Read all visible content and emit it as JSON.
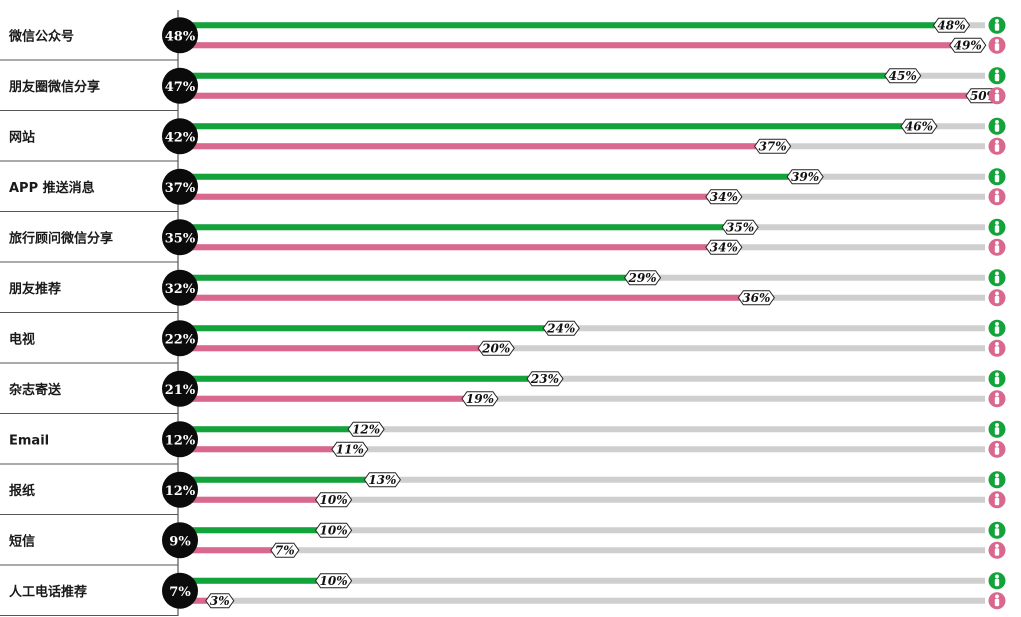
{
  "colors": {
    "male": "#12a43a",
    "female": "#d9678e",
    "track": "#cfcfcf",
    "circle": "#0b0b0b"
  },
  "icons": {
    "male": "male-person-icon",
    "female": "female-person-icon"
  },
  "chart_data": {
    "type": "bar",
    "orientation": "horizontal",
    "xlim": [
      0,
      50
    ],
    "series": [
      {
        "values": [
          48,
          45,
          46,
          39,
          35,
          29,
          24,
          23,
          12,
          13,
          10,
          10
        ]
      },
      {
        "values": [
          49,
          50,
          37,
          34,
          34,
          36,
          20,
          19,
          11,
          10,
          7,
          3
        ]
      }
    ],
    "rows": [
      {
        "label": "微信公众号",
        "total": "48%",
        "male": 48,
        "female": 49
      },
      {
        "label": "朋友圈微信分享",
        "total": "47%",
        "male": 45,
        "female": 50
      },
      {
        "label": "网站",
        "total": "42%",
        "male": 46,
        "female": 37
      },
      {
        "label": "APP 推送消息",
        "total": "37%",
        "male": 39,
        "female": 34
      },
      {
        "label": "旅行顾问微信分享",
        "total": "35%",
        "male": 35,
        "female": 34
      },
      {
        "label": "朋友推荐",
        "total": "32%",
        "male": 29,
        "female": 36
      },
      {
        "label": "电视",
        "total": "22%",
        "male": 24,
        "female": 20
      },
      {
        "label": "杂志寄送",
        "total": "21%",
        "male": 23,
        "female": 19
      },
      {
        "label": "Email",
        "total": "12%",
        "male": 12,
        "female": 11
      },
      {
        "label": "报纸",
        "total": "12%",
        "male": 13,
        "female": 10
      },
      {
        "label": "短信",
        "total": "9%",
        "male": 10,
        "female": 7
      },
      {
        "label": "人工电话推荐",
        "total": "7%",
        "male": 10,
        "female": 3
      }
    ]
  }
}
